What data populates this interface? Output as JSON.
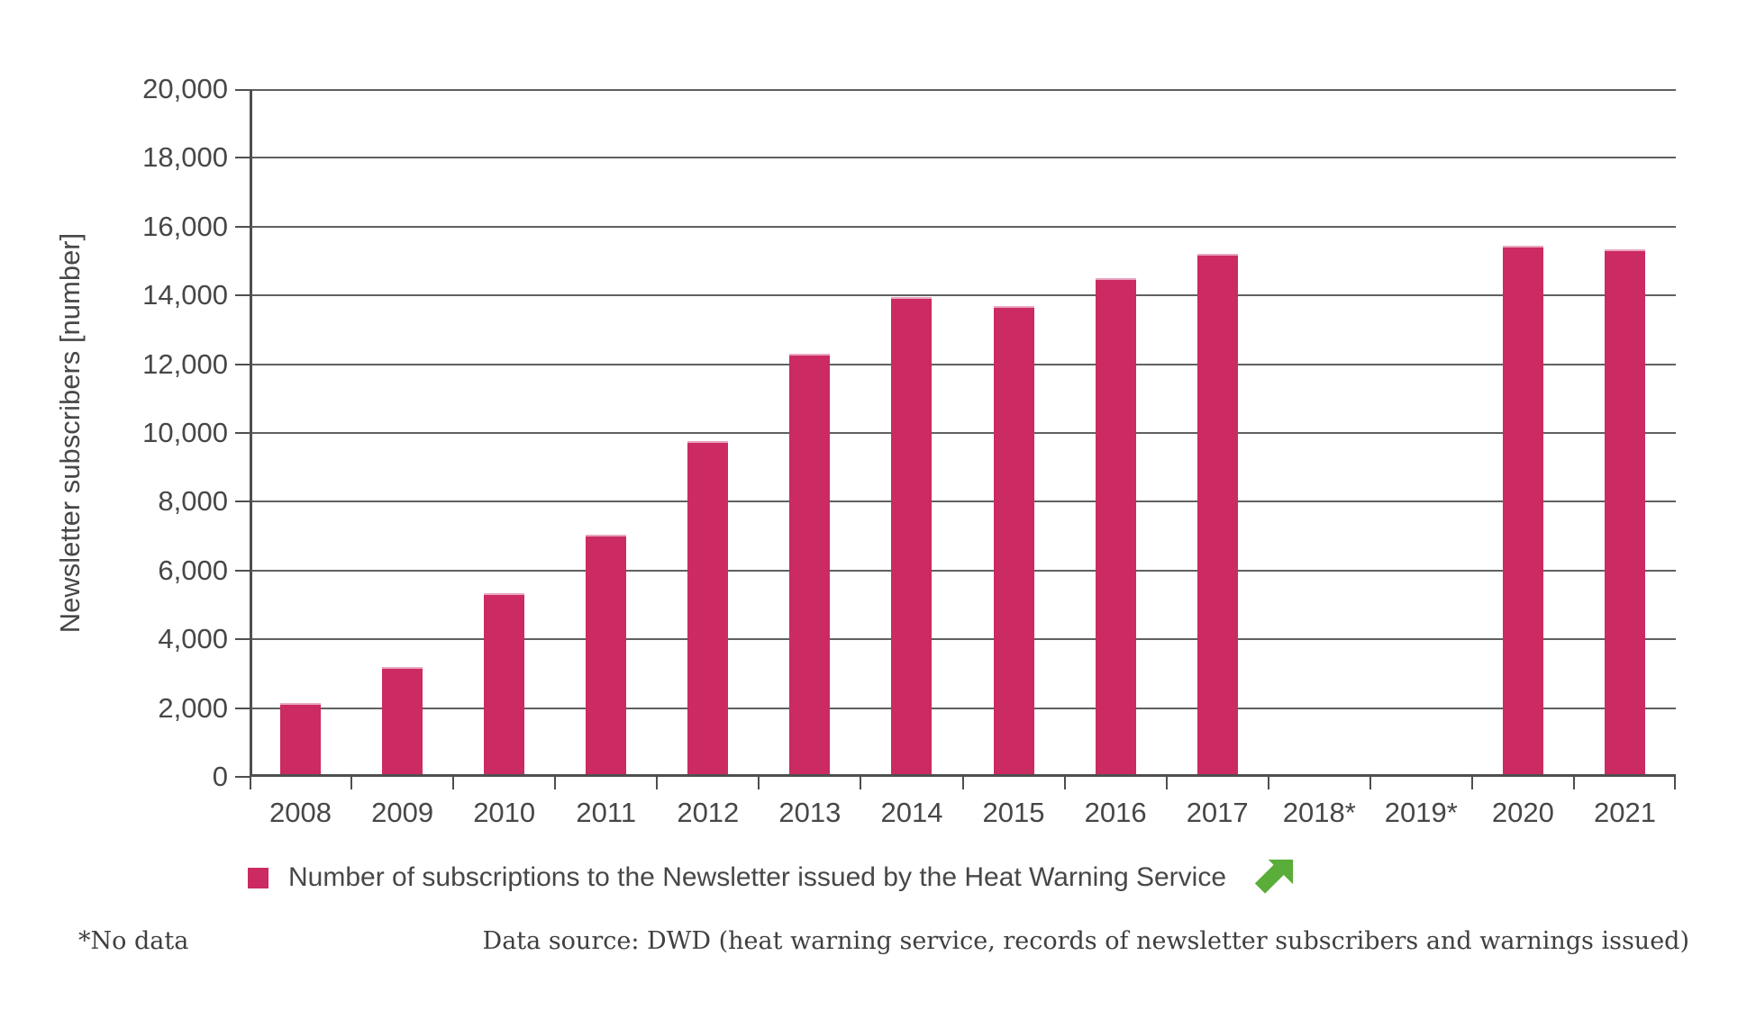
{
  "colors": {
    "bar": "#cb2a62",
    "bar_top_edge": "#e9a4c0",
    "trend_arrow": "#5aad39",
    "grid": "#606060",
    "axis": "#4f4f4f",
    "text": "#474747"
  },
  "legend": {
    "label": "Number of subscriptions to the Newsletter issued by the Heat Warning Service",
    "trend_icon": "arrow-up-right-icon",
    "trend_meaning": "rising"
  },
  "footer": {
    "note": "*No data",
    "source": "Data source: DWD (heat warning service, records of newsletter subscribers and warnings issued)"
  },
  "chart_data": {
    "type": "bar",
    "title": "",
    "categories": [
      "2008",
      "2009",
      "2010",
      "2011",
      "2012",
      "2013",
      "2014",
      "2015",
      "2016",
      "2017",
      "2018*",
      "2019*",
      "2020",
      "2021"
    ],
    "values": [
      2100,
      3150,
      5300,
      7000,
      9700,
      12250,
      13900,
      13650,
      14450,
      15150,
      null,
      null,
      15400,
      15300
    ],
    "no_data_categories": [
      "2018*",
      "2019*"
    ],
    "xlabel": "",
    "ylabel": "Newsletter subscribers [number]",
    "ylim": [
      0,
      20000
    ],
    "ytick_step": 2000,
    "ytick_labels": [
      "0",
      "2,000",
      "4,000",
      "6,000",
      "8,000",
      "10,000",
      "12,000",
      "14,000",
      "16,000",
      "18,000",
      "20,000"
    ],
    "grid": true,
    "legend_position": "bottom",
    "series": [
      {
        "name": "Number of subscriptions to the Newsletter issued by the Heat Warning Service",
        "color": "#cb2a62"
      }
    ]
  }
}
